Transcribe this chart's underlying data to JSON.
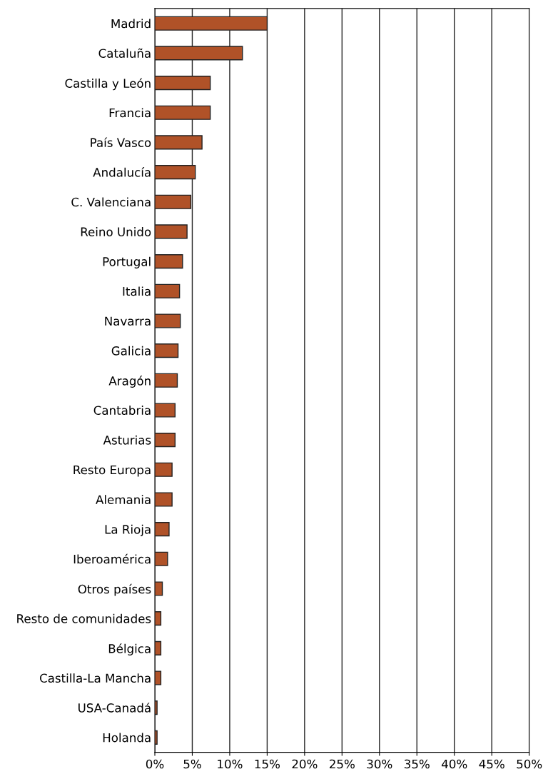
{
  "chart_data": {
    "type": "bar",
    "orientation": "horizontal",
    "categories": [
      "Madrid",
      "Cataluña",
      "Castilla y León",
      "Francia",
      "País Vasco",
      "Andalucía",
      "C. Valenciana",
      "Reino Unido",
      "Portugal",
      "Italia",
      "Navarra",
      "Galicia",
      "Aragón",
      "Cantabria",
      "Asturias",
      "Resto Europa",
      "Alemania",
      "La Rioja",
      "Iberoamérica",
      "Otros países",
      "Resto de comunidades",
      "Bélgica",
      "Castilla-La Mancha",
      "USA-Canadá",
      "Holanda"
    ],
    "values": [
      15.0,
      11.7,
      7.4,
      7.4,
      6.3,
      5.4,
      4.8,
      4.3,
      3.7,
      3.3,
      3.4,
      3.1,
      3.0,
      2.7,
      2.7,
      2.3,
      2.3,
      1.9,
      1.7,
      1.0,
      0.8,
      0.8,
      0.8,
      0.3,
      0.3
    ],
    "color": "#b05228",
    "xlim": [
      0,
      50
    ],
    "xticks": [
      {
        "value": 0,
        "label": "0%"
      },
      {
        "value": 5,
        "label": "5%"
      },
      {
        "value": 10,
        "label": "10%"
      },
      {
        "value": 15,
        "label": "15%"
      },
      {
        "value": 20,
        "label": "20%"
      },
      {
        "value": 25,
        "label": "25%"
      },
      {
        "value": 30,
        "label": "30%"
      },
      {
        "value": 35,
        "label": "35%"
      },
      {
        "value": 40,
        "label": "40%"
      },
      {
        "value": 45,
        "label": "45%"
      },
      {
        "value": 50,
        "label": "50%"
      }
    ],
    "grid": "x"
  }
}
